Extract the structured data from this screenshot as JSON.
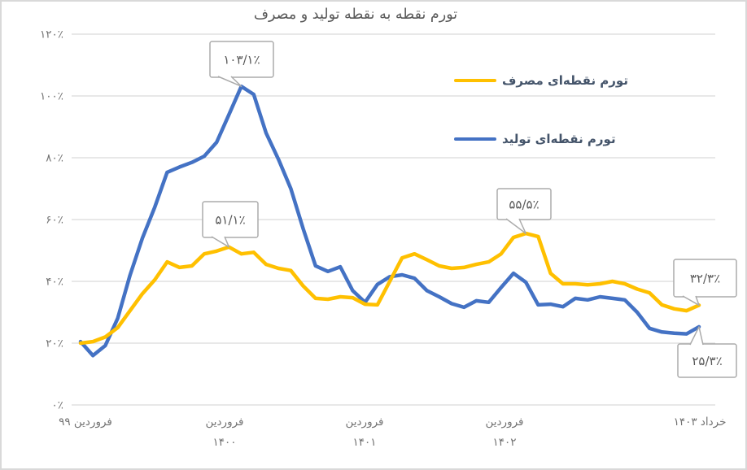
{
  "title": "تورم نقطه به نقطه تولید و مصرف",
  "chart_data": {
    "type": "line",
    "title": "تورم نقطه به نقطه تولید و مصرف",
    "x_start": "فروردین ۱۳۹۹",
    "x_end": "خرداد ۱۴۰۳",
    "n_points": 51,
    "x_tick_labels": [
      [
        "فروردین ۹۹"
      ],
      [
        "فروردین",
        "۱۴۰۰"
      ],
      [
        "فروردین",
        "۱۴۰۱"
      ],
      [
        "فروردین",
        "۱۴۰۲"
      ],
      [
        "خرداد ۱۴۰۳"
      ]
    ],
    "y_ticks": [
      {
        "value": 0,
        "label": "۰٪"
      },
      {
        "value": 20,
        "label": "۲۰٪"
      },
      {
        "value": 40,
        "label": "۴۰٪"
      },
      {
        "value": 60,
        "label": "۶۰٪"
      },
      {
        "value": 80,
        "label": "۸۰٪"
      },
      {
        "value": 100,
        "label": "۱۰۰٪"
      },
      {
        "value": 120,
        "label": "۱۲۰٪"
      }
    ],
    "ylim": [
      0,
      120
    ],
    "grid": "horizontal",
    "legend_position": "right-top",
    "series": [
      {
        "id": "producer",
        "name": "تورم نقطه‌ای تولید",
        "color": "#4472C4",
        "values": [
          20.5,
          16.0,
          19.2,
          28.0,
          42.0,
          54.0,
          64.0,
          75.3,
          77.0,
          78.5,
          80.5,
          85.0,
          94.0,
          103.1,
          100.5,
          88.0,
          79.5,
          70.0,
          57.0,
          45.0,
          43.2,
          44.7,
          37.0,
          33.2,
          39.0,
          41.5,
          42.1,
          41.0,
          37.0,
          35.0,
          32.8,
          31.6,
          33.7,
          33.2,
          38.0,
          42.6,
          39.7,
          32.4,
          32.6,
          31.8,
          34.5,
          34.0,
          35.0,
          34.5,
          34.0,
          30.0,
          24.8,
          23.6,
          23.2,
          23.0,
          25.3
        ]
      },
      {
        "id": "consumer",
        "name": "تورم نقطه‌ای مصرف",
        "color": "#FFC000",
        "values": [
          20.0,
          20.5,
          22.0,
          25.0,
          30.5,
          36.0,
          40.5,
          46.3,
          44.5,
          45.0,
          48.9,
          49.8,
          51.1,
          48.9,
          49.4,
          45.5,
          44.2,
          43.5,
          38.5,
          34.5,
          34.2,
          35.0,
          34.7,
          32.6,
          32.4,
          40.0,
          47.6,
          48.9,
          47.0,
          45.0,
          44.2,
          44.5,
          45.5,
          46.3,
          48.9,
          54.2,
          55.5,
          54.5,
          42.6,
          39.2,
          39.2,
          38.9,
          39.2,
          40.0,
          39.2,
          37.5,
          36.3,
          32.4,
          31.1,
          30.5,
          32.3
        ]
      }
    ],
    "annotations": [
      {
        "label": "۱۰۳/۱٪",
        "series": "producer",
        "month_index": 13,
        "value": 103.1
      },
      {
        "label": "۵۱/۱٪",
        "series": "consumer",
        "month_index": 12,
        "value": 51.1
      },
      {
        "label": "۵۵/۵٪",
        "series": "consumer",
        "month_index": 36,
        "value": 55.5
      },
      {
        "label": "۳۲/۳٪",
        "series": "consumer",
        "month_index": 50,
        "value": 32.3
      },
      {
        "label": "۲۵/۳٪",
        "series": "producer",
        "month_index": 50,
        "value": 25.3
      }
    ]
  },
  "legend": {
    "consumer_label": "تورم نقطه‌ای مصرف",
    "producer_label": "تورم نقطه‌ای تولید"
  },
  "colors": {
    "consumer": "#FFC000",
    "producer": "#4472C4",
    "gridline": "#d9d9d9",
    "axis_text": "#737373",
    "title_text": "#595959",
    "legend_text": "#44546a",
    "callout_border": "#ababab",
    "callout_text": "#595959",
    "card_border": "#d9d9d9"
  }
}
